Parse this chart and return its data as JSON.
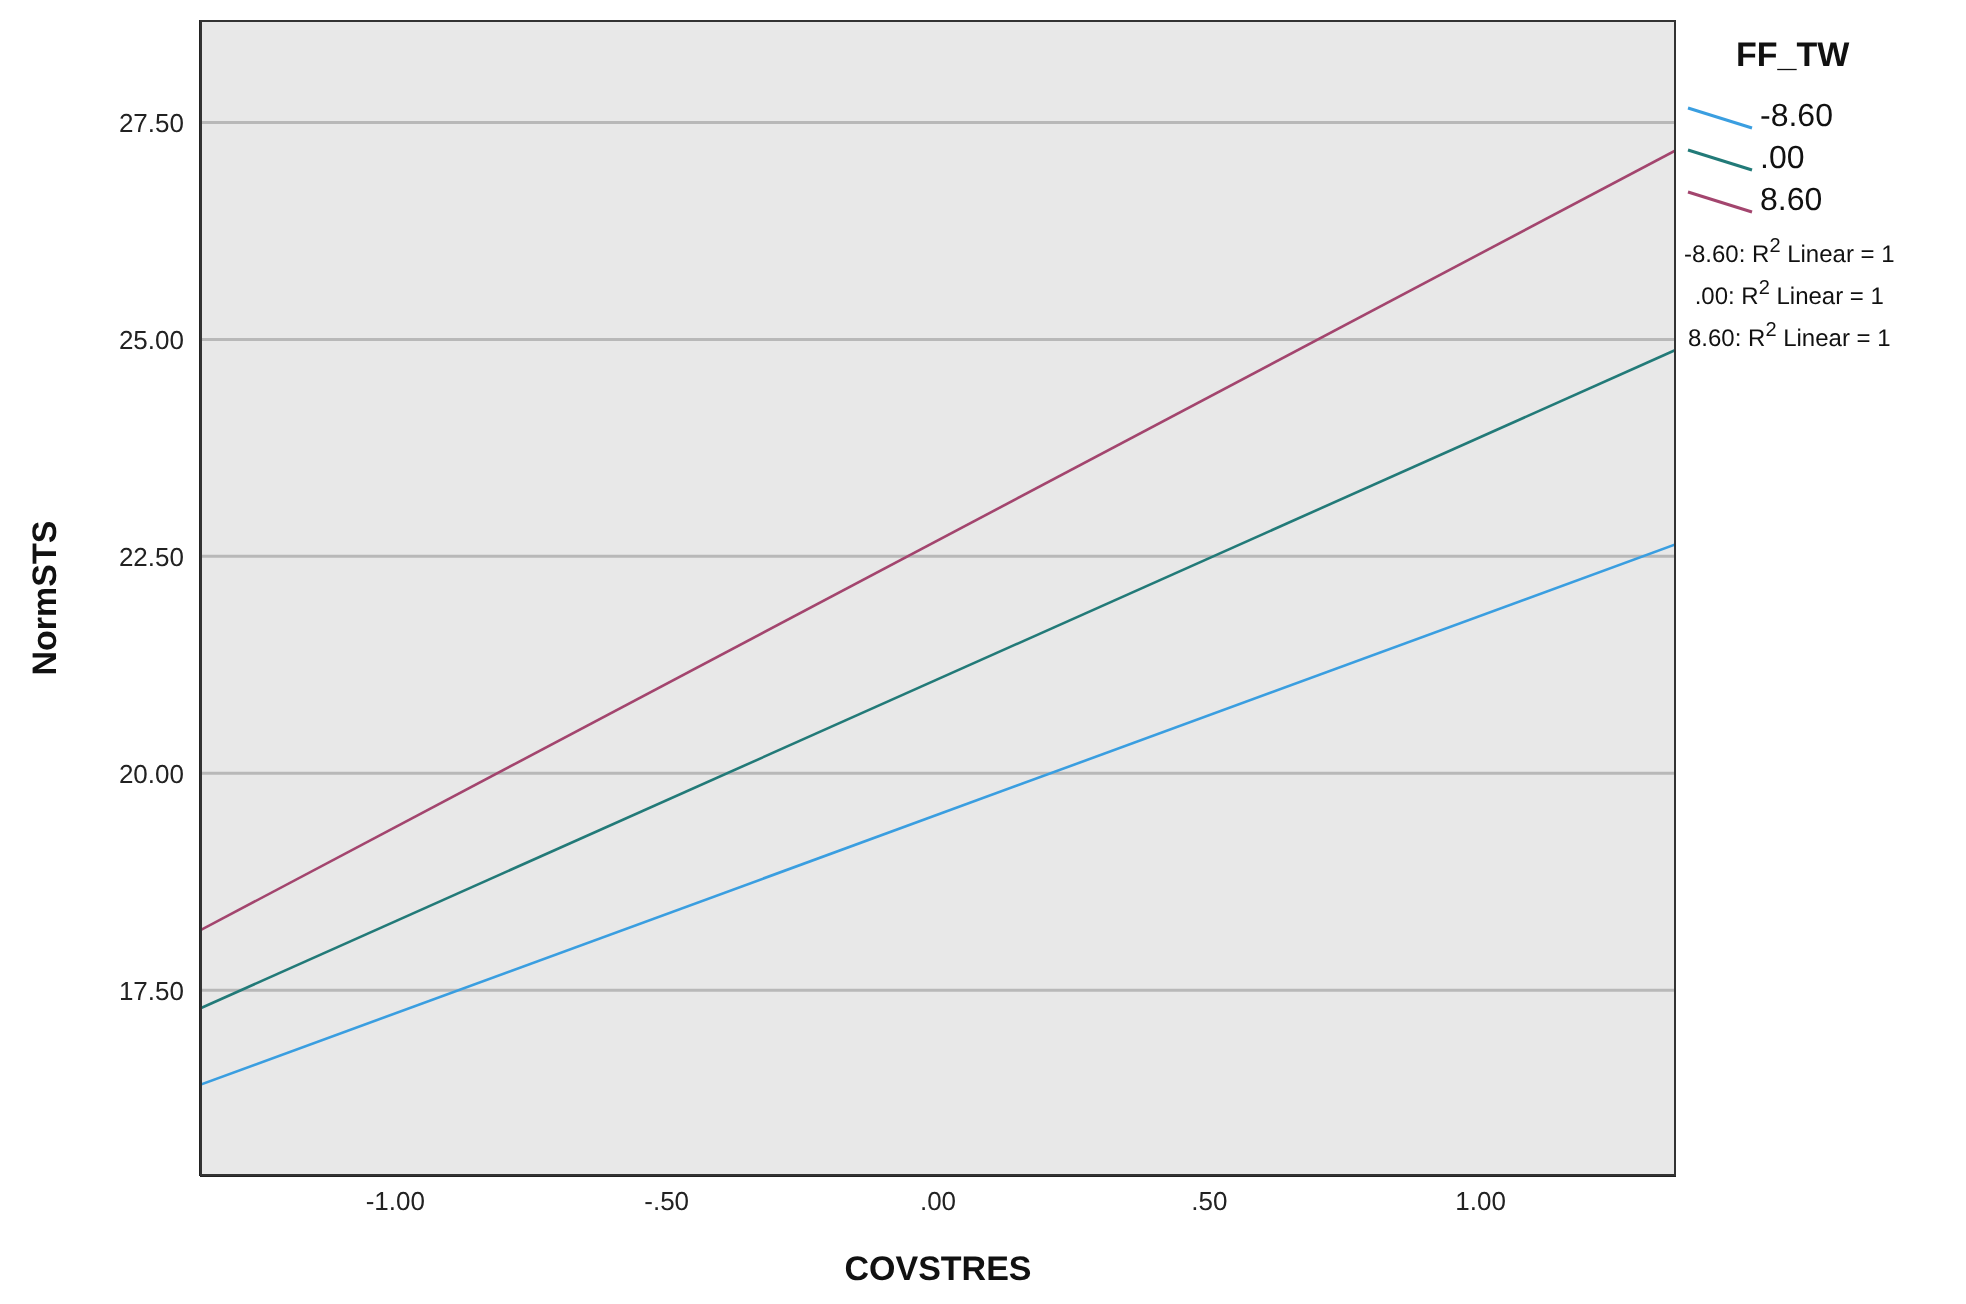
{
  "chart_data": {
    "type": "line",
    "xlabel": "COVSTRES",
    "ylabel": "NormSTS",
    "legend_title": "FF_TW",
    "legend": "top right",
    "grid": "y",
    "marker": "none",
    "line_style": "solid",
    "xlim": [
      -1.36,
      1.36
    ],
    "ylim": [
      15.36,
      28.68
    ],
    "xticks": [
      {
        "value": -1,
        "label": "-1.00"
      },
      {
        "value": -0.5,
        "label": "-.50"
      },
      {
        "value": 0,
        "label": ".00"
      },
      {
        "value": 0.5,
        "label": ".50"
      },
      {
        "value": 1,
        "label": "1.00"
      }
    ],
    "yticks": [
      {
        "value": 17.5,
        "label": "17.50"
      },
      {
        "value": 20,
        "label": "20.00"
      },
      {
        "value": 22.5,
        "label": "22.50"
      },
      {
        "value": 25,
        "label": "25.00"
      },
      {
        "value": 27.5,
        "label": "27.50"
      }
    ],
    "x": [
      -1.36,
      1.36
    ],
    "series": [
      {
        "name": "-8.60",
        "color": "#3a9ee0",
        "values": [
          16.41,
          22.64
        ]
      },
      {
        "name": ".00",
        "color": "#227a78",
        "values": [
          17.29,
          24.88
        ]
      },
      {
        "name": "8.60",
        "color": "#a3456e",
        "values": [
          18.19,
          27.18
        ]
      }
    ],
    "annotations": [
      "-8.60: R$^{2}$ Linear = 1",
      ".00: R$^{2}$ Linear = 1",
      "8.60: R$^{2}$ Linear = 1"
    ]
  }
}
